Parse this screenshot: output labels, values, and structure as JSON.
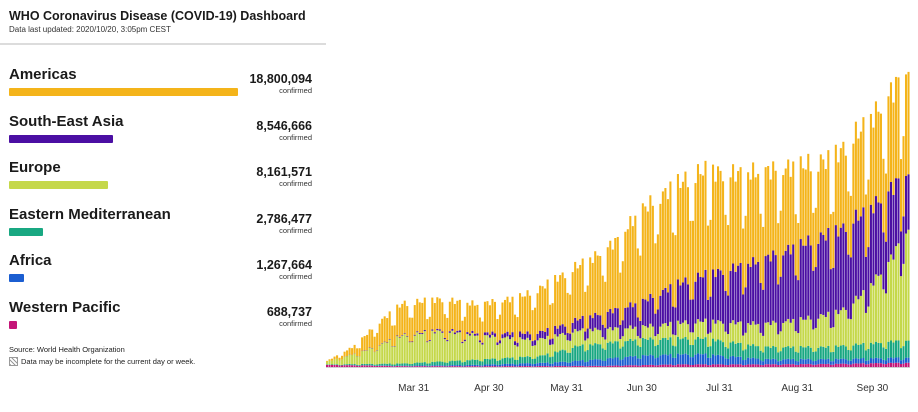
{
  "header": {
    "title": "WHO Coronavirus Disease (COVID-19) Dashboard",
    "updated": "Data last updated: 2020/10/20, 3:05pm CEST"
  },
  "regions": [
    {
      "name": "Americas",
      "value": "18,800,094",
      "unit": "confirmed",
      "color": "#f4b41a",
      "fraction": 1.0
    },
    {
      "name": "South-East Asia",
      "value": "8,546,666",
      "unit": "confirmed",
      "color": "#4b0fa3",
      "fraction": 0.455
    },
    {
      "name": "Europe",
      "value": "8,161,571",
      "unit": "confirmed",
      "color": "#c5d84a",
      "fraction": 0.434
    },
    {
      "name": "Eastern Mediterranean",
      "value": "2,786,477",
      "unit": "confirmed",
      "color": "#19a882",
      "fraction": 0.148
    },
    {
      "name": "Africa",
      "value": "1,267,664",
      "unit": "confirmed",
      "color": "#1b5ed1",
      "fraction": 0.067
    },
    {
      "name": "Western Pacific",
      "value": "688,737",
      "unit": "confirmed",
      "color": "#c41578",
      "fraction": 0.037
    }
  ],
  "footer": {
    "source": "Source: World Health Organization",
    "note": "Data may be incomplete for the current day or week."
  },
  "chart_data": {
    "type": "bar",
    "stacked": true,
    "x_ticks": [
      "Mar 31",
      "Apr 30",
      "May 31",
      "Jun 30",
      "Jul 31",
      "Aug 31",
      "Sep 30"
    ],
    "grid": false,
    "legend": "left panel",
    "stack_order": [
      "Western Pacific",
      "Africa",
      "Eastern Mediterranean",
      "Europe",
      "South-East Asia",
      "Americas"
    ],
    "series": [
      {
        "name": "Western Pacific",
        "color": "#c41578",
        "keypoints": [
          [
            0,
            2500
          ],
          [
            30,
            1000
          ],
          [
            60,
            1000
          ],
          [
            110,
            1300
          ],
          [
            140,
            3000
          ],
          [
            170,
            3000
          ],
          [
            200,
            3500
          ],
          [
            232,
            5000
          ]
        ]
      },
      {
        "name": "Africa",
        "color": "#1b5ed1",
        "keypoints": [
          [
            0,
            0
          ],
          [
            30,
            500
          ],
          [
            60,
            1500
          ],
          [
            90,
            4000
          ],
          [
            125,
            11000
          ],
          [
            150,
            12000
          ],
          [
            175,
            6000
          ],
          [
            200,
            5500
          ],
          [
            232,
            6000
          ]
        ]
      },
      {
        "name": "Eastern Mediterranean",
        "color": "#19a882",
        "keypoints": [
          [
            0,
            500
          ],
          [
            30,
            2500
          ],
          [
            60,
            6000
          ],
          [
            85,
            8000
          ],
          [
            100,
            17000
          ],
          [
            125,
            19000
          ],
          [
            150,
            18000
          ],
          [
            175,
            14000
          ],
          [
            200,
            14000
          ],
          [
            232,
            20000
          ]
        ]
      },
      {
        "name": "Europe",
        "color": "#c5d84a",
        "keypoints": [
          [
            0,
            3000
          ],
          [
            15,
            15000
          ],
          [
            30,
            32000
          ],
          [
            45,
            35000
          ],
          [
            60,
            28000
          ],
          [
            80,
            20000
          ],
          [
            100,
            18000
          ],
          [
            125,
            14000
          ],
          [
            150,
            20000
          ],
          [
            170,
            25000
          ],
          [
            190,
            32000
          ],
          [
            205,
            40000
          ],
          [
            215,
            60000
          ],
          [
            225,
            95000
          ],
          [
            232,
            130000
          ]
        ]
      },
      {
        "name": "South-East Asia",
        "color": "#4b0fa3",
        "keypoints": [
          [
            0,
            0
          ],
          [
            30,
            700
          ],
          [
            60,
            2500
          ],
          [
            80,
            7000
          ],
          [
            95,
            10000
          ],
          [
            110,
            18000
          ],
          [
            125,
            28000
          ],
          [
            140,
            45000
          ],
          [
            160,
            60000
          ],
          [
            175,
            75000
          ],
          [
            195,
            90000
          ],
          [
            210,
            95000
          ],
          [
            225,
            80000
          ],
          [
            232,
            65000
          ]
        ]
      },
      {
        "name": "Americas",
        "color": "#f4b41a",
        "keypoints": [
          [
            0,
            1000
          ],
          [
            10,
            8000
          ],
          [
            20,
            25000
          ],
          [
            30,
            36000
          ],
          [
            45,
            35000
          ],
          [
            60,
            33000
          ],
          [
            75,
            40000
          ],
          [
            90,
            55000
          ],
          [
            105,
            65000
          ],
          [
            115,
            78000
          ],
          [
            125,
            105000
          ],
          [
            140,
            115000
          ],
          [
            150,
            120000
          ],
          [
            160,
            110000
          ],
          [
            175,
            100000
          ],
          [
            190,
            90000
          ],
          [
            200,
            85000
          ],
          [
            215,
            100000
          ],
          [
            225,
            110000
          ],
          [
            232,
            120000
          ]
        ]
      }
    ],
    "day_count": 233,
    "weekly_dip_fraction": 0.75
  }
}
